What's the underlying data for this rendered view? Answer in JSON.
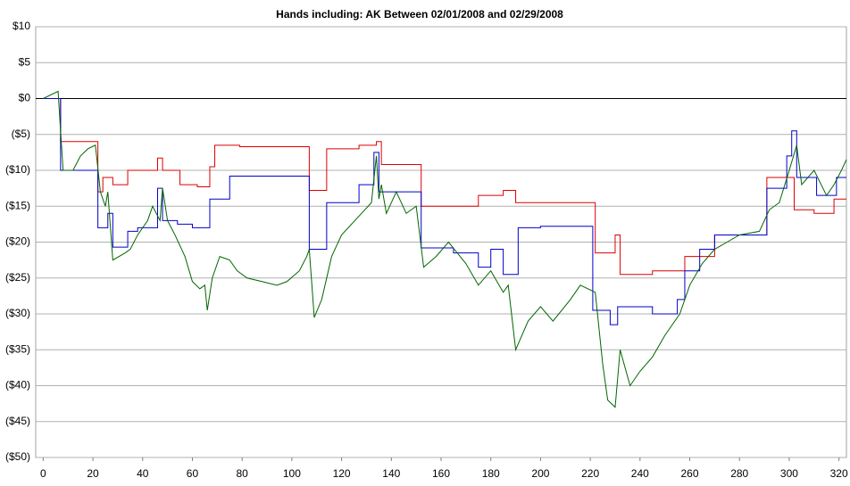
{
  "chart_data": {
    "type": "line",
    "title": "Hands including: AK Between 02/01/2008 and 02/29/2008",
    "xlim": [
      -3,
      323
    ],
    "ylim": [
      -50,
      10
    ],
    "xticks": [
      0,
      20,
      40,
      60,
      80,
      100,
      120,
      140,
      160,
      180,
      200,
      220,
      240,
      260,
      280,
      300,
      320
    ],
    "yticks": [
      {
        "value": 10,
        "label": "$10"
      },
      {
        "value": 5,
        "label": "$5"
      },
      {
        "value": 0,
        "label": "$0"
      },
      {
        "value": -5,
        "label": "($5)"
      },
      {
        "value": -10,
        "label": "($10)"
      },
      {
        "value": -15,
        "label": "($15)"
      },
      {
        "value": -20,
        "label": "($20)"
      },
      {
        "value": -25,
        "label": "($25)"
      },
      {
        "value": -30,
        "label": "($30)"
      },
      {
        "value": -35,
        "label": "($35)"
      },
      {
        "value": -40,
        "label": "($40)"
      },
      {
        "value": -45,
        "label": "($45)"
      },
      {
        "value": -50,
        "label": "($50)"
      }
    ],
    "grid": true,
    "series": [
      {
        "color": "#dd0000",
        "x": [
          0,
          7,
          7,
          22,
          22,
          24,
          24,
          28,
          28,
          34,
          34,
          46,
          46,
          48,
          48,
          55,
          55,
          62,
          62,
          67,
          67,
          69,
          69,
          79,
          79,
          107,
          107,
          114,
          114,
          127,
          127,
          134,
          134,
          136,
          136,
          152,
          152,
          175,
          175,
          185,
          185,
          190,
          190,
          222,
          222,
          230,
          230,
          232,
          232,
          245,
          245,
          258,
          258,
          270,
          270,
          291,
          291,
          302,
          302,
          310,
          310,
          318,
          318,
          323
        ],
        "values": [
          0,
          0,
          -6,
          -6,
          -13,
          -13,
          -11,
          -11,
          -12,
          -12,
          -10,
          -10,
          -8.3,
          -8.3,
          -10,
          -10,
          -12,
          -12,
          -12.3,
          -12.3,
          -9.5,
          -9.5,
          -6.5,
          -6.5,
          -6.7,
          -6.7,
          -12.8,
          -12.8,
          -7,
          -7,
          -6.5,
          -6.5,
          -6,
          -6,
          -9.2,
          -9.2,
          -15,
          -15,
          -13.5,
          -13.5,
          -12.8,
          -12.8,
          -14.5,
          -14.5,
          -21.5,
          -21.5,
          -19,
          -19,
          -24.5,
          -24.5,
          -24,
          -24,
          -22,
          -22,
          -19,
          -19,
          -11,
          -11,
          -15.5,
          -15.5,
          -16,
          -16,
          -14,
          -14
        ]
      },
      {
        "color": "#0000cc",
        "x": [
          0,
          7,
          7,
          22,
          22,
          26,
          26,
          28,
          28,
          34,
          34,
          38,
          38,
          46,
          46,
          48,
          48,
          54,
          54,
          60,
          60,
          67,
          67,
          75,
          75,
          107,
          107,
          114,
          114,
          127,
          127,
          133,
          133,
          135,
          135,
          152,
          152,
          165,
          165,
          175,
          175,
          180,
          180,
          185,
          185,
          191,
          191,
          200,
          200,
          221,
          221,
          228,
          228,
          231,
          231,
          245,
          245,
          255,
          255,
          258,
          258,
          264,
          264,
          270,
          270,
          291,
          291,
          299,
          299,
          301,
          301,
          303,
          303,
          311,
          311,
          319,
          319,
          323
        ],
        "values": [
          0,
          0,
          -10,
          -10,
          -18,
          -18,
          -16,
          -16,
          -20.7,
          -20.7,
          -18.5,
          -18.5,
          -18,
          -18,
          -12.5,
          -12.5,
          -17,
          -17,
          -17.5,
          -17.5,
          -18,
          -18,
          -14,
          -14,
          -10.8,
          -10.8,
          -21,
          -21,
          -14.5,
          -14.5,
          -12,
          -12,
          -7.5,
          -7.5,
          -13,
          -13,
          -20.8,
          -20.8,
          -21.5,
          -21.5,
          -23.5,
          -23.5,
          -21,
          -21,
          -24.5,
          -24.5,
          -18,
          -18,
          -17.8,
          -17.8,
          -29.5,
          -29.5,
          -31.5,
          -31.5,
          -29,
          -29,
          -30,
          -30,
          -28,
          -28,
          -24,
          -24,
          -21,
          -21,
          -19,
          -19,
          -12.5,
          -12.5,
          -8,
          -8,
          -4.5,
          -4.5,
          -11,
          -11,
          -13.5,
          -13.5,
          -11,
          -11
        ]
      },
      {
        "color": "#006600",
        "x": [
          0,
          6,
          8,
          12,
          15,
          18,
          21,
          23,
          25,
          26,
          28,
          33,
          35,
          38,
          42,
          44,
          47,
          48,
          50,
          53,
          57,
          60,
          63,
          65,
          66,
          68,
          71,
          75,
          78,
          82,
          88,
          94,
          98,
          103,
          106,
          107,
          109,
          112,
          116,
          120,
          128,
          132,
          134,
          135,
          136,
          138,
          142,
          146,
          150,
          153,
          158,
          163,
          170,
          175,
          180,
          185,
          187,
          190,
          195,
          200,
          205,
          212,
          216,
          222,
          225,
          227,
          230,
          232,
          236,
          240,
          245,
          250,
          256,
          260,
          265,
          270,
          275,
          280,
          288,
          292,
          296,
          300,
          303,
          305,
          310,
          315,
          318,
          321,
          323
        ],
        "values": [
          0,
          1,
          -10,
          -10,
          -8,
          -7,
          -6.5,
          -13,
          -15,
          -13,
          -22.5,
          -21.5,
          -21,
          -19,
          -17,
          -15,
          -17,
          -12.5,
          -17,
          -19,
          -22,
          -25.5,
          -26.5,
          -26,
          -29.5,
          -25,
          -22,
          -22.5,
          -24,
          -25,
          -25.5,
          -26,
          -25.5,
          -24,
          -22,
          -21,
          -30.5,
          -28,
          -22,
          -19,
          -16,
          -14.5,
          -8,
          -14,
          -12,
          -16,
          -13,
          -16,
          -15,
          -23.5,
          -22,
          -20,
          -23,
          -26,
          -24,
          -27,
          -26,
          -35,
          -31,
          -29,
          -31,
          -28,
          -26,
          -27,
          -37,
          -42,
          -43,
          -35,
          -40,
          -38,
          -36,
          -33,
          -30,
          -26,
          -23,
          -21,
          -20,
          -19,
          -18.5,
          -15.5,
          -14.5,
          -10,
          -6.5,
          -12,
          -10,
          -13.5,
          -12,
          -10,
          -8.5
        ]
      }
    ]
  }
}
